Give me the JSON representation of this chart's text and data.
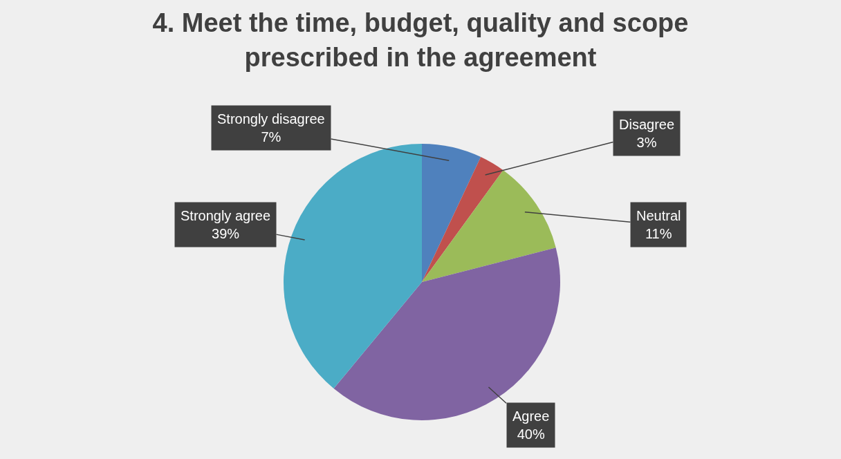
{
  "chart_data": {
    "type": "pie",
    "title": "4. Meet the time, budget, quality and scope\nprescribed in the agreement",
    "categories": [
      "Strongly disagree",
      "Disagree",
      "Neutral",
      "Agree",
      "Strongly agree"
    ],
    "values": [
      7,
      3,
      11,
      40,
      39
    ],
    "value_labels": [
      "7%",
      "3%",
      "11%",
      "40%",
      "39%"
    ],
    "colors": [
      "#4f81bd",
      "#c0504d",
      "#9bbb59",
      "#8064a2",
      "#4bacc6"
    ],
    "legend": false
  }
}
